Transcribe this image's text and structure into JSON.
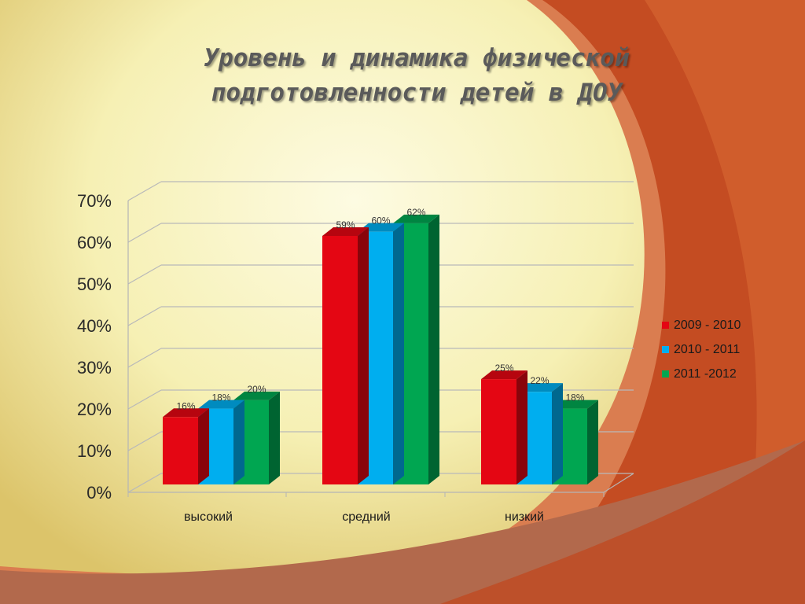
{
  "title": "Уровень и  динамика физической\nподготовленности детей в ДОУ",
  "chart_data": {
    "type": "bar",
    "categories": [
      "высокий",
      "средний",
      "низкий"
    ],
    "y_tick_labels": [
      "0%",
      "10%",
      "20%",
      "30%",
      "40%",
      "50%",
      "60%",
      "70%"
    ],
    "ylim": [
      0,
      70
    ],
    "grid": true,
    "legend_position": "right",
    "series": [
      {
        "name": "2009 - 2010",
        "color": "#e40613",
        "values": [
          16,
          59,
          25
        ],
        "labels": [
          "16%",
          "59%",
          "25%"
        ]
      },
      {
        "name": "2010 - 2011",
        "color": "#00aeef",
        "values": [
          18,
          60,
          22
        ],
        "labels": [
          "18%",
          "60%",
          "22%"
        ]
      },
      {
        "name": "2011 -2012",
        "color": "#00a651",
        "values": [
          20,
          62,
          18
        ],
        "labels": [
          "20%",
          "62%",
          "18%"
        ]
      }
    ]
  }
}
